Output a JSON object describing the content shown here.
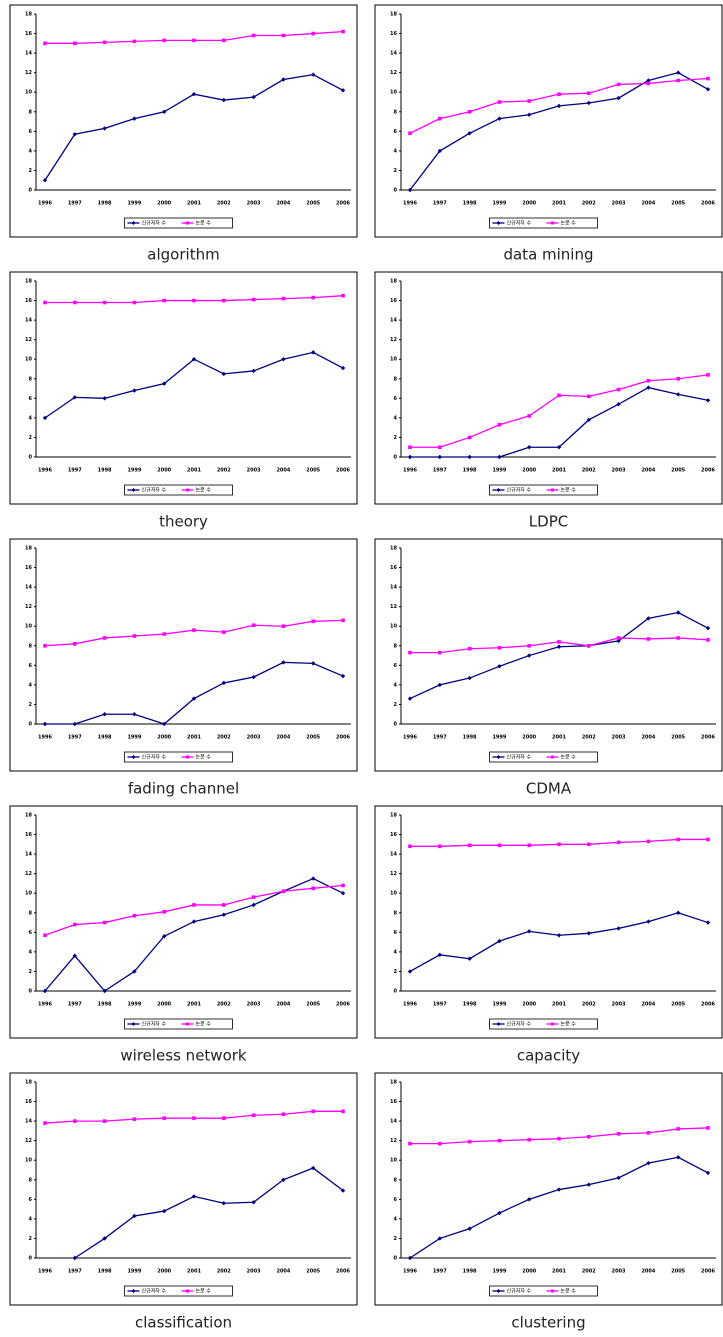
{
  "chart_data": [
    {
      "type": "line",
      "title": "algorithm",
      "categories": [
        "1996",
        "1997",
        "1998",
        "1999",
        "2000",
        "2001",
        "2002",
        "2003",
        "2004",
        "2005",
        "2006"
      ],
      "ylim": [
        0,
        18
      ],
      "yticks": [
        0,
        2,
        4,
        6,
        8,
        10,
        12,
        14,
        16,
        18
      ],
      "series": [
        {
          "name": "신규저자 수",
          "color": "#000080",
          "values": [
            1,
            5.7,
            6.3,
            7.3,
            8,
            9.8,
            9.2,
            9.5,
            11.3,
            11.8,
            10.2
          ]
        },
        {
          "name": "논문 수",
          "color": "#ff00ff",
          "values": [
            15,
            15,
            15.1,
            15.2,
            15.3,
            15.3,
            15.3,
            15.8,
            15.8,
            16,
            16.2
          ]
        }
      ]
    },
    {
      "type": "line",
      "title": "data mining",
      "categories": [
        "1996",
        "1997",
        "1998",
        "1999",
        "2000",
        "2001",
        "2002",
        "2003",
        "2004",
        "2005",
        "2006"
      ],
      "ylim": [
        0,
        18
      ],
      "yticks": [
        0,
        2,
        4,
        6,
        8,
        10,
        12,
        14,
        16,
        18
      ],
      "series": [
        {
          "name": "신규저자 수",
          "color": "#000080",
          "values": [
            0,
            4,
            5.8,
            7.3,
            7.7,
            8.6,
            8.9,
            9.4,
            11.2,
            12,
            10.3
          ]
        },
        {
          "name": "논문 수",
          "color": "#ff00ff",
          "values": [
            5.8,
            7.3,
            8,
            9,
            9.1,
            9.8,
            9.9,
            10.8,
            10.9,
            11.2,
            11.4
          ]
        }
      ]
    },
    {
      "type": "line",
      "title": "theory",
      "categories": [
        "1996",
        "1997",
        "1998",
        "1999",
        "2000",
        "2001",
        "2002",
        "2003",
        "2004",
        "2005",
        "2006"
      ],
      "ylim": [
        0,
        18
      ],
      "yticks": [
        0,
        2,
        4,
        6,
        8,
        10,
        12,
        14,
        16,
        18
      ],
      "series": [
        {
          "name": "신규저자 수",
          "color": "#000080",
          "values": [
            4,
            6.1,
            6,
            6.8,
            7.5,
            10,
            8.5,
            8.8,
            10,
            10.7,
            9.1
          ]
        },
        {
          "name": "논문 수",
          "color": "#ff00ff",
          "values": [
            15.8,
            15.8,
            15.8,
            15.8,
            16,
            16,
            16,
            16.1,
            16.2,
            16.3,
            16.5
          ]
        }
      ]
    },
    {
      "type": "line",
      "title": "LDPC",
      "categories": [
        "1996",
        "1997",
        "1998",
        "1999",
        "2000",
        "2001",
        "2002",
        "2003",
        "2004",
        "2005",
        "2006"
      ],
      "ylim": [
        0,
        18
      ],
      "yticks": [
        0,
        2,
        4,
        6,
        8,
        10,
        12,
        14,
        16,
        18
      ],
      "series": [
        {
          "name": "신규저자 수",
          "color": "#000080",
          "values": [
            0,
            0,
            0,
            0,
            1,
            1,
            3.8,
            5.4,
            7.1,
            6.4,
            5.8
          ]
        },
        {
          "name": "논문 수",
          "color": "#ff00ff",
          "values": [
            1,
            1,
            2,
            3.3,
            4.2,
            6.3,
            6.2,
            6.9,
            7.8,
            8,
            8.4
          ]
        }
      ]
    },
    {
      "type": "line",
      "title": "fading channel",
      "categories": [
        "1996",
        "1997",
        "1998",
        "1999",
        "2000",
        "2001",
        "2002",
        "2003",
        "2004",
        "2005",
        "2006"
      ],
      "ylim": [
        0,
        18
      ],
      "yticks": [
        0,
        2,
        4,
        6,
        8,
        10,
        12,
        14,
        16,
        18
      ],
      "series": [
        {
          "name": "신규저자 수",
          "color": "#000080",
          "values": [
            0,
            0,
            1,
            1,
            0,
            2.6,
            4.2,
            4.8,
            6.3,
            6.2,
            4.9
          ]
        },
        {
          "name": "논문 수",
          "color": "#ff00ff",
          "values": [
            8,
            8.2,
            8.8,
            9,
            9.2,
            9.6,
            9.4,
            10.1,
            10,
            10.5,
            10.6
          ]
        }
      ]
    },
    {
      "type": "line",
      "title": "CDMA",
      "categories": [
        "1996",
        "1997",
        "1998",
        "1999",
        "2000",
        "2001",
        "2002",
        "2003",
        "2004",
        "2005",
        "2006"
      ],
      "ylim": [
        0,
        18
      ],
      "yticks": [
        0,
        2,
        4,
        6,
        8,
        10,
        12,
        14,
        16,
        18
      ],
      "series": [
        {
          "name": "신규저자 수",
          "color": "#000080",
          "values": [
            2.6,
            4,
            4.7,
            5.9,
            7,
            7.9,
            8,
            8.5,
            10.8,
            11.4,
            9.8
          ]
        },
        {
          "name": "논문 수",
          "color": "#ff00ff",
          "values": [
            7.3,
            7.3,
            7.7,
            7.8,
            8,
            8.4,
            8,
            8.8,
            8.7,
            8.8,
            8.6
          ]
        }
      ]
    },
    {
      "type": "line",
      "title": "wireless network",
      "categories": [
        "1996",
        "1997",
        "1998",
        "1999",
        "2000",
        "2001",
        "2002",
        "2003",
        "2004",
        "2005",
        "2006"
      ],
      "ylim": [
        0,
        18
      ],
      "yticks": [
        0,
        2,
        4,
        6,
        8,
        10,
        12,
        14,
        16,
        18
      ],
      "series": [
        {
          "name": "신규저자 수",
          "color": "#000080",
          "values": [
            0,
            3.6,
            0,
            2,
            5.6,
            7.1,
            7.8,
            8.8,
            10.2,
            11.5,
            10
          ]
        },
        {
          "name": "논문 수",
          "color": "#ff00ff",
          "values": [
            5.7,
            6.8,
            7,
            7.7,
            8.1,
            8.8,
            8.8,
            9.6,
            10.2,
            10.5,
            10.8
          ]
        }
      ]
    },
    {
      "type": "line",
      "title": "capacity",
      "categories": [
        "1996",
        "1997",
        "1998",
        "1999",
        "2000",
        "2001",
        "2002",
        "2003",
        "2004",
        "2005",
        "2006"
      ],
      "ylim": [
        0,
        18
      ],
      "yticks": [
        0,
        2,
        4,
        6,
        8,
        10,
        12,
        14,
        16,
        18
      ],
      "series": [
        {
          "name": "신규저자 수",
          "color": "#000080",
          "values": [
            2,
            3.7,
            3.3,
            5.1,
            6.1,
            5.7,
            5.9,
            6.4,
            7.1,
            8,
            7
          ]
        },
        {
          "name": "논문 수",
          "color": "#ff00ff",
          "values": [
            14.8,
            14.8,
            14.9,
            14.9,
            14.9,
            15,
            15,
            15.2,
            15.3,
            15.5,
            15.5
          ]
        }
      ]
    },
    {
      "type": "line",
      "title": "classification",
      "categories": [
        "1996",
        "1997",
        "1998",
        "1999",
        "2000",
        "2001",
        "2002",
        "2003",
        "2004",
        "2005",
        "2006"
      ],
      "ylim": [
        0,
        18
      ],
      "yticks": [
        0,
        2,
        4,
        6,
        8,
        10,
        12,
        14,
        16,
        18
      ],
      "series": [
        {
          "name": "신규저자 수",
          "color": "#000080",
          "values": [
            null,
            0,
            2,
            4.3,
            4.8,
            6.3,
            5.6,
            5.7,
            8,
            9.2,
            6.9
          ]
        },
        {
          "name": "논문 수",
          "color": "#ff00ff",
          "values": [
            13.8,
            14,
            14,
            14.2,
            14.3,
            14.3,
            14.3,
            14.6,
            14.7,
            15,
            15
          ]
        }
      ]
    },
    {
      "type": "line",
      "title": "clustering",
      "categories": [
        "1996",
        "1997",
        "1998",
        "1999",
        "2000",
        "2001",
        "2002",
        "2003",
        "2004",
        "2005",
        "2006"
      ],
      "ylim": [
        0,
        18
      ],
      "yticks": [
        0,
        2,
        4,
        6,
        8,
        10,
        12,
        14,
        16,
        18
      ],
      "series": [
        {
          "name": "신규저자 수",
          "color": "#000080",
          "values": [
            0,
            2,
            3,
            4.6,
            6,
            7,
            7.5,
            8.2,
            9.7,
            10.3,
            8.7
          ]
        },
        {
          "name": "논문 수",
          "color": "#ff00ff",
          "values": [
            11.7,
            11.7,
            11.9,
            12,
            12.1,
            12.2,
            12.4,
            12.7,
            12.8,
            13.2,
            13.3
          ]
        }
      ]
    }
  ]
}
